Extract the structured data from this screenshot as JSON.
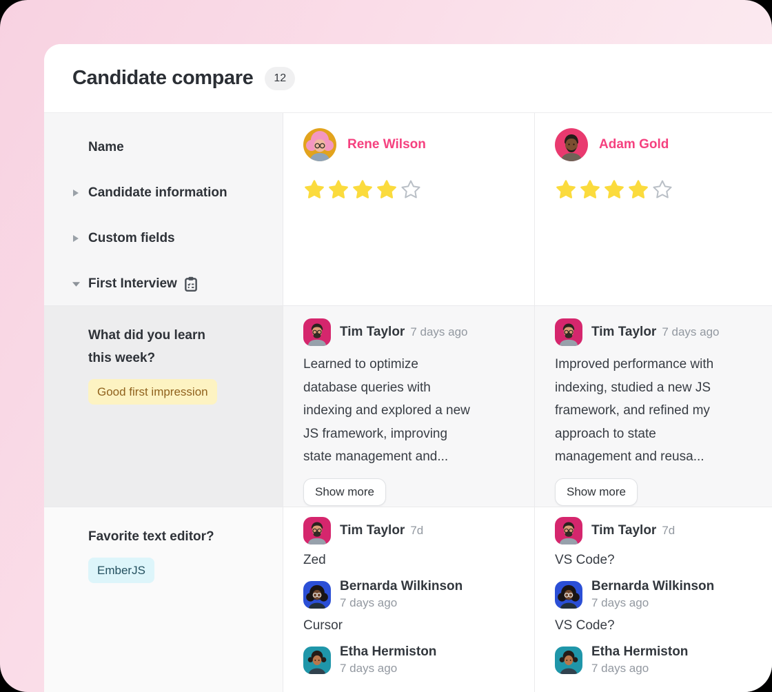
{
  "header": {
    "title": "Candidate compare",
    "count": "12"
  },
  "sidebar": {
    "name_label": "Name",
    "groups": [
      {
        "label": "Candidate information",
        "expanded": false,
        "caret": "caret-right-icon"
      },
      {
        "label": "Custom fields",
        "expanded": false,
        "caret": "caret-right-icon"
      },
      {
        "label": "First Interview",
        "expanded": true,
        "caret": "caret-down-icon",
        "icon": "clipboard-icon"
      }
    ]
  },
  "questions": [
    {
      "text": "What did you learn\nthis week?",
      "tag": "Good first impression",
      "tag_style": "yellow"
    },
    {
      "text": "Favorite text editor?",
      "tag": "EmberJS",
      "tag_style": "cyan"
    }
  ],
  "candidates": [
    {
      "name": "Rene Wilson",
      "rating": 4,
      "rating_max": 5,
      "q1": {
        "author": "Tim Taylor",
        "time": "7 days ago",
        "text": "Learned to optimize\ndatabase queries with\nindexing and explored a new\nJS framework, improving\nstate management and...",
        "show_more": "Show more"
      },
      "q2": [
        {
          "author": "Tim Taylor",
          "time": "7d",
          "answer": "Zed"
        },
        {
          "author": "Bernarda Wilkinson",
          "time": "7 days ago",
          "answer": "Cursor"
        },
        {
          "author": "Etha Hermiston",
          "time": "7 days ago",
          "answer": ""
        }
      ]
    },
    {
      "name": "Adam Gold",
      "rating": 4,
      "rating_max": 5,
      "q1": {
        "author": "Tim Taylor",
        "time": "7 days ago",
        "text": "Improved performance with\nindexing, studied a new JS\nframework, and refined my\napproach to state\nmanagement and reusa...",
        "show_more": "Show more"
      },
      "q2": [
        {
          "author": "Tim Taylor",
          "time": "7d",
          "answer": "VS Code?"
        },
        {
          "author": "Bernarda Wilkinson",
          "time": "7 days ago",
          "answer": "VS Code?"
        },
        {
          "author": "Etha Hermiston",
          "time": "7 days ago",
          "answer": ""
        }
      ]
    }
  ],
  "colors": {
    "accent_pink": "#f5417f",
    "star_yellow": "#fbdb3d",
    "star_empty_stroke": "#b9bfc6",
    "tag_yellow_bg": "#fdf3c2",
    "tag_yellow_text": "#90621d",
    "tag_cyan_bg": "#ddf5fa",
    "tag_cyan_text": "#24505f",
    "background_pink": "#f8d2e1"
  }
}
